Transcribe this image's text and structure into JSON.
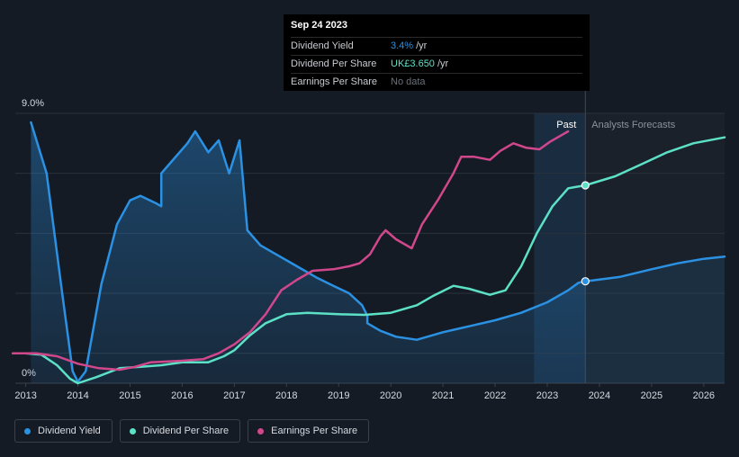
{
  "chart_data": {
    "type": "line",
    "x_range": [
      2012.8,
      2026.4
    ],
    "ylim": [
      0,
      9.0
    ],
    "y_ticks": [
      "9.0%",
      "0%"
    ],
    "x_ticks": [
      "2013",
      "2014",
      "2015",
      "2016",
      "2017",
      "2018",
      "2019",
      "2020",
      "2021",
      "2022",
      "2023",
      "2024",
      "2025",
      "2026"
    ],
    "past_label": "Past",
    "forecast_label": "Analysts Forecasts",
    "forecast_start": 2023.73,
    "series": [
      {
        "name": "Dividend Yield",
        "color": "#2b91e3",
        "area": true,
        "end_marker": 2023.73,
        "points": [
          [
            2013.1,
            8.7
          ],
          [
            2013.4,
            7.0
          ],
          [
            2013.7,
            3.0
          ],
          [
            2013.9,
            0.4
          ],
          [
            2014.0,
            0.05
          ],
          [
            2014.15,
            0.4
          ],
          [
            2014.45,
            3.3
          ],
          [
            2014.75,
            5.3
          ],
          [
            2015.0,
            6.1
          ],
          [
            2015.2,
            6.25
          ],
          [
            2015.5,
            6.0
          ],
          [
            2015.6,
            5.9
          ],
          [
            2015.6,
            7.0
          ],
          [
            2015.85,
            7.5
          ],
          [
            2016.1,
            8.0
          ],
          [
            2016.25,
            8.4
          ],
          [
            2016.5,
            7.7
          ],
          [
            2016.7,
            8.1
          ],
          [
            2016.9,
            7.0
          ],
          [
            2017.1,
            8.1
          ],
          [
            2017.25,
            5.1
          ],
          [
            2017.5,
            4.6
          ],
          [
            2017.8,
            4.3
          ],
          [
            2018.2,
            3.9
          ],
          [
            2018.6,
            3.5
          ],
          [
            2018.9,
            3.25
          ],
          [
            2019.2,
            3.0
          ],
          [
            2019.45,
            2.6
          ],
          [
            2019.55,
            2.25
          ],
          [
            2019.55,
            2.0
          ],
          [
            2019.8,
            1.75
          ],
          [
            2020.1,
            1.55
          ],
          [
            2020.5,
            1.45
          ],
          [
            2021.0,
            1.7
          ],
          [
            2021.5,
            1.9
          ],
          [
            2022.0,
            2.1
          ],
          [
            2022.5,
            2.35
          ],
          [
            2023.0,
            2.7
          ],
          [
            2023.4,
            3.1
          ],
          [
            2023.6,
            3.35
          ],
          [
            2023.73,
            3.4
          ],
          [
            2024.4,
            3.55
          ],
          [
            2025.0,
            3.8
          ],
          [
            2025.5,
            4.0
          ],
          [
            2026.0,
            4.15
          ],
          [
            2026.4,
            4.22
          ]
        ]
      },
      {
        "name": "Dividend Per Share",
        "color": "#5ce1c6",
        "area": false,
        "end_marker": 2023.73,
        "points": [
          [
            2013.0,
            1.0
          ],
          [
            2013.3,
            0.95
          ],
          [
            2013.6,
            0.6
          ],
          [
            2013.85,
            0.15
          ],
          [
            2014.0,
            0.0
          ],
          [
            2014.35,
            0.2
          ],
          [
            2014.8,
            0.5
          ],
          [
            2015.2,
            0.55
          ],
          [
            2015.6,
            0.6
          ],
          [
            2016.0,
            0.7
          ],
          [
            2016.5,
            0.7
          ],
          [
            2016.8,
            0.9
          ],
          [
            2017.0,
            1.1
          ],
          [
            2017.3,
            1.6
          ],
          [
            2017.6,
            2.0
          ],
          [
            2018.0,
            2.3
          ],
          [
            2018.4,
            2.35
          ],
          [
            2019.0,
            2.3
          ],
          [
            2019.5,
            2.28
          ],
          [
            2020.0,
            2.35
          ],
          [
            2020.5,
            2.6
          ],
          [
            2020.8,
            2.9
          ],
          [
            2021.2,
            3.25
          ],
          [
            2021.5,
            3.15
          ],
          [
            2021.9,
            2.95
          ],
          [
            2022.2,
            3.1
          ],
          [
            2022.5,
            3.9
          ],
          [
            2022.8,
            5.0
          ],
          [
            2023.1,
            5.9
          ],
          [
            2023.4,
            6.5
          ],
          [
            2023.73,
            6.6
          ],
          [
            2024.3,
            6.9
          ],
          [
            2024.8,
            7.3
          ],
          [
            2025.3,
            7.7
          ],
          [
            2025.8,
            8.0
          ],
          [
            2026.4,
            8.2
          ]
        ]
      },
      {
        "name": "Earnings Per Share",
        "color": "#d1478c",
        "area": false,
        "end_marker": null,
        "points": [
          [
            2012.75,
            1.0
          ],
          [
            2013.2,
            1.0
          ],
          [
            2013.6,
            0.9
          ],
          [
            2014.0,
            0.65
          ],
          [
            2014.4,
            0.5
          ],
          [
            2014.8,
            0.45
          ],
          [
            2015.1,
            0.55
          ],
          [
            2015.4,
            0.7
          ],
          [
            2016.0,
            0.75
          ],
          [
            2016.4,
            0.8
          ],
          [
            2016.7,
            1.0
          ],
          [
            2017.0,
            1.3
          ],
          [
            2017.3,
            1.7
          ],
          [
            2017.6,
            2.3
          ],
          [
            2017.9,
            3.1
          ],
          [
            2018.2,
            3.45
          ],
          [
            2018.5,
            3.75
          ],
          [
            2018.9,
            3.8
          ],
          [
            2019.2,
            3.9
          ],
          [
            2019.4,
            4.0
          ],
          [
            2019.6,
            4.3
          ],
          [
            2019.8,
            4.9
          ],
          [
            2019.9,
            5.1
          ],
          [
            2020.1,
            4.8
          ],
          [
            2020.4,
            4.5
          ],
          [
            2020.6,
            5.3
          ],
          [
            2020.9,
            6.1
          ],
          [
            2021.2,
            7.0
          ],
          [
            2021.35,
            7.55
          ],
          [
            2021.6,
            7.55
          ],
          [
            2021.9,
            7.45
          ],
          [
            2022.1,
            7.75
          ],
          [
            2022.35,
            8.0
          ],
          [
            2022.6,
            7.85
          ],
          [
            2022.85,
            7.8
          ],
          [
            2023.05,
            8.05
          ],
          [
            2023.4,
            8.4
          ]
        ]
      }
    ]
  },
  "tooltip": {
    "date": "Sep 24 2023",
    "rows": [
      {
        "label": "Dividend Yield",
        "value": "3.4%",
        "unit": "/yr",
        "color": "#2b91e3"
      },
      {
        "label": "Dividend Per Share",
        "value": "UK£3.650",
        "unit": "/yr",
        "color": "#5ce1c6"
      },
      {
        "label": "Earnings Per Share",
        "value": "No data",
        "unit": "",
        "color": "#6b7079"
      }
    ]
  },
  "legend": [
    {
      "label": "Dividend Yield",
      "color": "#2b91e3"
    },
    {
      "label": "Dividend Per Share",
      "color": "#5ce1c6"
    },
    {
      "label": "Earnings Per Share",
      "color": "#d1478c"
    }
  ]
}
